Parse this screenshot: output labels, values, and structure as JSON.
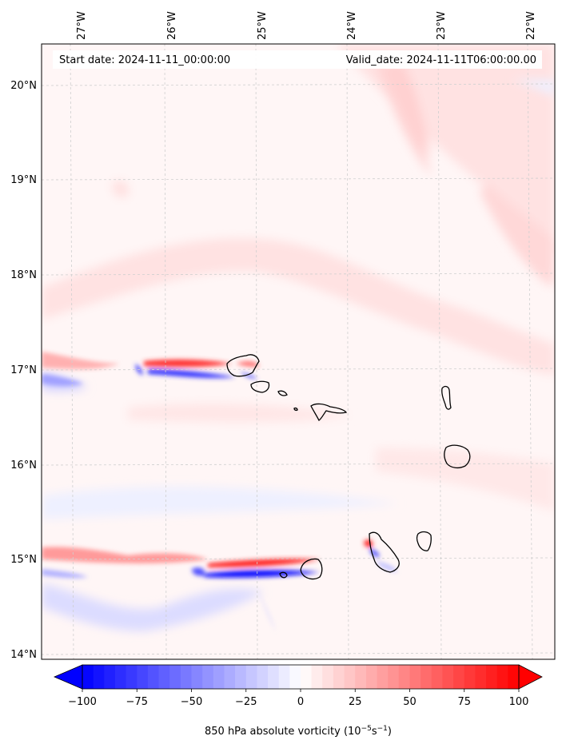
{
  "map": {
    "start_date": "Start date: 2024-11-11_00:00:00",
    "valid_date": "Valid_date: 2024-11-11T06:00:00.00",
    "lon_labels": [
      "27°W",
      "26°W",
      "25°W",
      "24°W",
      "23°W",
      "22°W"
    ],
    "lat_labels": [
      "20°N",
      "19°N",
      "18°N",
      "17°N",
      "16°N",
      "15°N",
      "14°N"
    ],
    "lon_range": [
      -27.35,
      -21.75
    ],
    "lat_range": [
      13.95,
      20.42
    ],
    "gridlines": true,
    "field": "850 hPa absolute vorticity"
  },
  "colorbar": {
    "ticks": [
      "−100",
      "−75",
      "−50",
      "−25",
      "0",
      "25",
      "50",
      "75",
      "100"
    ],
    "tick_values": [
      -100,
      -75,
      -50,
      -25,
      0,
      25,
      50,
      75,
      100
    ],
    "range": [
      -100,
      100
    ],
    "label_main": "850 hPa absolute vorticity (10",
    "label_exp1": "−5",
    "label_mid": "s",
    "label_exp2": "−1",
    "label_end": ")",
    "negative_color": "#0000ff",
    "zero_color": "#ffffff",
    "positive_color": "#ff0000",
    "extend": "both"
  }
}
